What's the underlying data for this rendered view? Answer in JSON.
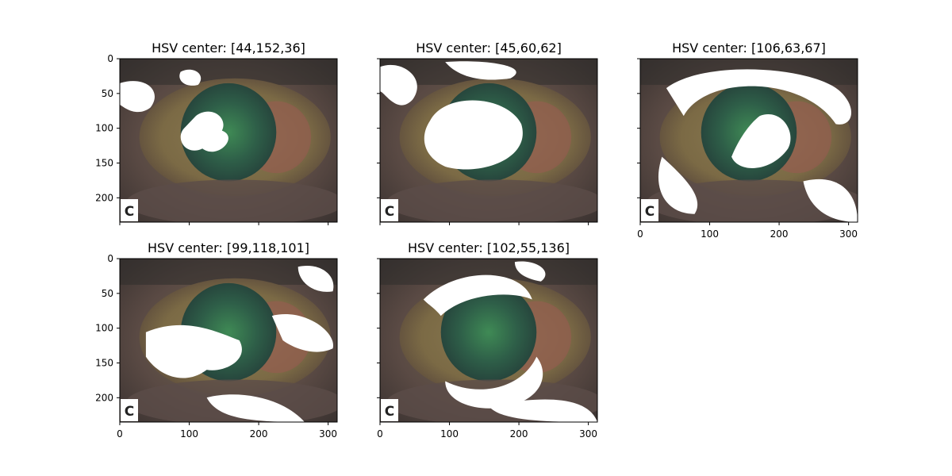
{
  "chart_data": {
    "type": "image-grid",
    "grid": {
      "rows": 2,
      "cols": 3,
      "sharex": true,
      "sharey": true
    },
    "image_extent": {
      "x": [
        0,
        313
      ],
      "y": [
        235,
        0
      ]
    },
    "xticks": [
      0,
      100,
      200,
      300
    ],
    "yticks": [
      0,
      50,
      100,
      150,
      200
    ],
    "panels": [
      {
        "title": "HSV center: [44,152,36]",
        "row": 0,
        "col": 0,
        "mask_color": "#ffffff"
      },
      {
        "title": "HSV center: [45,60,62]",
        "row": 0,
        "col": 1,
        "mask_color": "#ffffff"
      },
      {
        "title": "HSV center: [106,63,67]",
        "row": 0,
        "col": 2,
        "mask_color": "#ffffff"
      },
      {
        "title": "HSV center: [99,118,101]",
        "row": 1,
        "col": 0,
        "mask_color": "#ffffff"
      },
      {
        "title": "HSV center: [102,55,136]",
        "row": 1,
        "col": 1,
        "mask_color": "#ffffff"
      }
    ],
    "watermark": "C"
  }
}
